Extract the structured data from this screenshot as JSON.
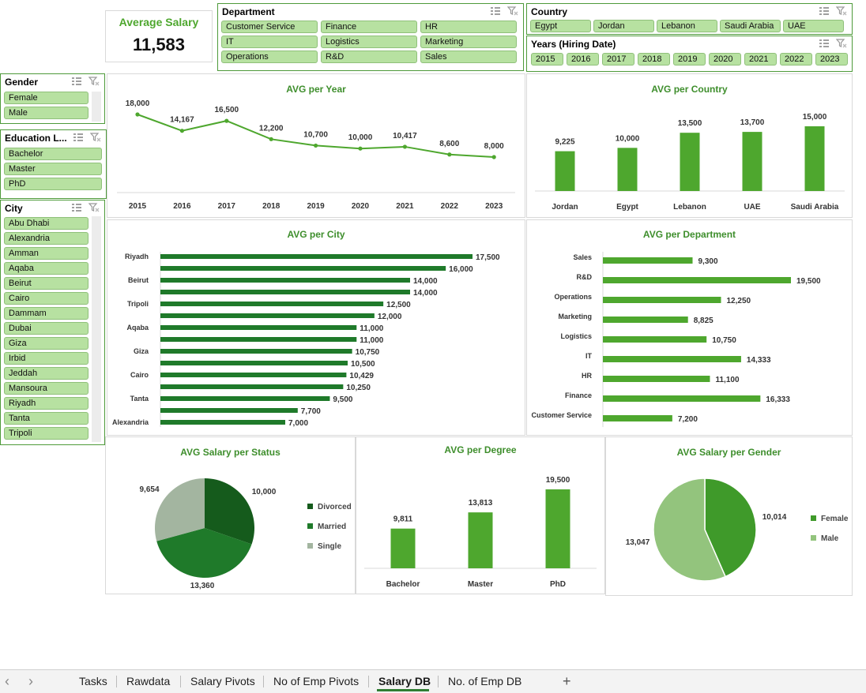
{
  "kpi": {
    "title": "Average Salary",
    "value": "11,583"
  },
  "slicers": {
    "department": {
      "title": "Department",
      "items": [
        "Customer Service",
        "Finance",
        "HR",
        "IT",
        "Logistics",
        "Marketing",
        "Operations",
        "R&D",
        "Sales"
      ]
    },
    "country": {
      "title": "Country",
      "items": [
        "Egypt",
        "Jordan",
        "Lebanon",
        "Saudi Arabia",
        "UAE"
      ]
    },
    "years": {
      "title": "Years (Hiring Date)",
      "items": [
        "2015",
        "2016",
        "2017",
        "2018",
        "2019",
        "2020",
        "2021",
        "2022",
        "2023"
      ]
    },
    "gender": {
      "title": "Gender",
      "items": [
        "Female",
        "Male"
      ]
    },
    "education": {
      "title": "Education L...",
      "items": [
        "Bachelor",
        "Master",
        "PhD"
      ]
    },
    "city": {
      "title": "City",
      "items": [
        "Abu Dhabi",
        "Alexandria",
        "Amman",
        "Aqaba",
        "Beirut",
        "Cairo",
        "Dammam",
        "Dubai",
        "Giza",
        "Irbid",
        "Jeddah",
        "Mansoura",
        "Riyadh",
        "Tanta",
        "Tripoli"
      ]
    }
  },
  "colors": {
    "accent": "#4ea72e",
    "bar": "#4ea72e",
    "bar_dark": "#1f7a2a",
    "slicer_fill": "#b7e1a1",
    "pie_divorced": "#155b1c",
    "pie_married": "#1f7a2a",
    "pie_single": "#a3b5a0",
    "pie_female": "#3f9a2a",
    "pie_male": "#93c47d"
  },
  "chart_data": [
    {
      "id": "avg_per_year",
      "type": "line",
      "title": "AVG per Year",
      "categories": [
        "2015",
        "2016",
        "2017",
        "2018",
        "2019",
        "2020",
        "2021",
        "2022",
        "2023"
      ],
      "values": [
        18000,
        14167,
        16500,
        12200,
        10700,
        10000,
        10417,
        8600,
        8000
      ],
      "labels": [
        "18,000",
        "14,167",
        "16,500",
        "12,200",
        "10,700",
        "10,000",
        "10,417",
        "8,600",
        "8,000"
      ],
      "ylim": [
        0,
        20000
      ]
    },
    {
      "id": "avg_per_country",
      "type": "bar",
      "title": "AVG per Country",
      "categories": [
        "Jordan",
        "Egypt",
        "Lebanon",
        "UAE",
        "Saudi Arabia"
      ],
      "values": [
        9225,
        10000,
        13500,
        13700,
        15000
      ],
      "labels": [
        "9,225",
        "10,000",
        "13,500",
        "13,700",
        "15,000"
      ],
      "ylim": [
        0,
        16000
      ]
    },
    {
      "id": "avg_per_city",
      "type": "bar",
      "orientation": "horizontal",
      "title": "AVG per City",
      "categories": [
        "Riyadh",
        "",
        "Beirut",
        "",
        "Tripoli",
        "",
        "Aqaba",
        "",
        "Giza",
        "",
        "Cairo",
        "",
        "Tanta",
        "",
        "Alexandria"
      ],
      "values": [
        17500,
        16000,
        14000,
        14000,
        12500,
        12000,
        11000,
        11000,
        10750,
        10500,
        10429,
        10250,
        9500,
        7700,
        7000
      ],
      "labels": [
        "17,500",
        "16,000",
        "14,000",
        "14,000",
        "12,500",
        "12,000",
        "11,000",
        "11,000",
        "10,750",
        "10,500",
        "10,429",
        "10,250",
        "9,500",
        "7,700",
        "7,000"
      ],
      "xlim": [
        0,
        20000
      ]
    },
    {
      "id": "avg_per_department",
      "type": "bar",
      "orientation": "horizontal",
      "title": "AVG per Department",
      "categories": [
        "Sales",
        "R&D",
        "Operations",
        "Marketing",
        "Logistics",
        "IT",
        "HR",
        "Finance",
        "Customer Service"
      ],
      "values": [
        9300,
        19500,
        12250,
        8825,
        10750,
        14333,
        11100,
        16333,
        7200
      ],
      "labels": [
        "9,300",
        "19,500",
        "12,250",
        "8,825",
        "10,750",
        "14,333",
        "11,100",
        "16,333",
        "7,200"
      ],
      "xlim": [
        0,
        20000
      ]
    },
    {
      "id": "avg_per_status",
      "type": "pie",
      "title": "AVG Salary per Status",
      "categories": [
        "Divorced",
        "Married",
        "Single"
      ],
      "values": [
        10000,
        13360,
        9654
      ],
      "labels": [
        "10,000",
        "13,360",
        "9,654"
      ]
    },
    {
      "id": "avg_per_degree",
      "type": "bar",
      "title": "AVG per Degree",
      "categories": [
        "Bachelor",
        "Master",
        "PhD"
      ],
      "values": [
        9811,
        13813,
        19500
      ],
      "labels": [
        "9,811",
        "13,813",
        "19,500"
      ],
      "ylim": [
        0,
        20000
      ]
    },
    {
      "id": "avg_per_gender",
      "type": "pie",
      "title": "AVG Salary per Gender",
      "categories": [
        "Female",
        "Male"
      ],
      "values": [
        10014,
        13047
      ],
      "labels": [
        "10,014",
        "13,047"
      ]
    }
  ],
  "tabs": {
    "items": [
      "Tasks",
      "Rawdata",
      "Salary Pivots",
      "No of Emp Pivots",
      "Salary DB",
      "No. of Emp DB"
    ],
    "active": "Salary DB",
    "add_label": "+",
    "prev_label": "‹",
    "next_label": "›"
  },
  "icons": {
    "multiselect": "multi-select-icon",
    "clear_filter": "clear-filter-icon"
  }
}
